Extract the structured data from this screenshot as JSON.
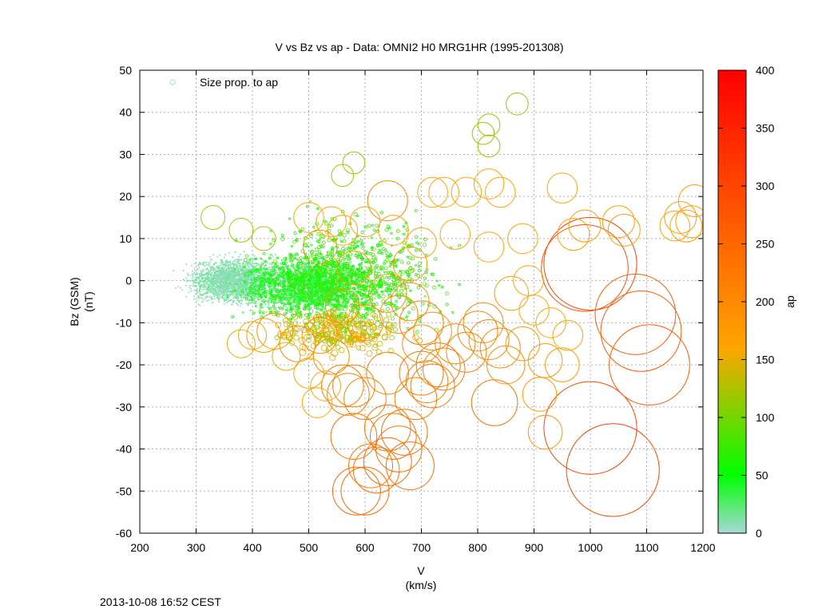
{
  "footer_timestamp": "2013-10-08 16:52 CEST",
  "colorbar_stops": [
    "#a8d8d8",
    "#00ff00",
    "#ffa500",
    "#ff0000"
  ],
  "chart_data": {
    "type": "scatter",
    "title": "V vs Bz vs ap  -  Data: OMNI2 H0 MRG1HR (1995-201308)",
    "xlabel": "V",
    "xunit": "(km/s)",
    "ylabel": "Bz (GSM)",
    "yunit": "(nT)",
    "xlim": [
      200,
      1200
    ],
    "ylim": [
      -60,
      50
    ],
    "xticks": [
      200,
      300,
      400,
      500,
      600,
      700,
      800,
      900,
      1000,
      1100,
      1200
    ],
    "yticks": [
      -60,
      -50,
      -40,
      -30,
      -20,
      -10,
      0,
      10,
      20,
      30,
      40,
      50
    ],
    "grid": true,
    "legend": {
      "label": "Size prop. to ap",
      "placement": "top-left"
    },
    "colorbar": {
      "label": "ap",
      "range": [
        0,
        400
      ],
      "ticks": [
        0,
        50,
        100,
        150,
        200,
        250,
        300,
        350,
        400
      ]
    },
    "series": [
      {
        "name": "Size prop. to ap",
        "points": [
          [
            1000,
            -35,
            300
          ],
          [
            1040,
            -45,
            300
          ],
          [
            1000,
            4,
            300
          ],
          [
            990,
            3,
            280
          ],
          [
            1080,
            -8,
            260
          ],
          [
            1090,
            -12,
            260
          ],
          [
            1105,
            -20,
            260
          ],
          [
            700,
            -10,
            220
          ],
          [
            640,
            19,
            200
          ],
          [
            585,
            -50,
            240
          ],
          [
            600,
            -50,
            240
          ],
          [
            640,
            -43,
            240
          ],
          [
            680,
            -44,
            240
          ],
          [
            660,
            -40,
            230
          ],
          [
            620,
            -45,
            230
          ],
          [
            580,
            -37,
            230
          ],
          [
            640,
            -35,
            230
          ],
          [
            670,
            -36,
            230
          ],
          [
            610,
            -44,
            220
          ],
          [
            650,
            -37,
            230
          ],
          [
            830,
            -29,
            230
          ],
          [
            560,
            -25,
            210
          ],
          [
            570,
            -27,
            210
          ],
          [
            580,
            -25,
            210
          ],
          [
            600,
            -28,
            210
          ],
          [
            640,
            -22,
            210
          ],
          [
            700,
            -22,
            220
          ],
          [
            720,
            -25,
            220
          ],
          [
            730,
            -20,
            220
          ],
          [
            710,
            -24,
            210
          ],
          [
            690,
            -28,
            210
          ],
          [
            740,
            -21,
            210
          ],
          [
            760,
            -15,
            200
          ],
          [
            780,
            -17,
            200
          ],
          [
            800,
            -12,
            200
          ],
          [
            820,
            -14,
            200
          ],
          [
            840,
            -16,
            200
          ],
          [
            810,
            -10,
            200
          ],
          [
            850,
            -20,
            190
          ],
          [
            700,
            -15,
            190
          ],
          [
            720,
            -12,
            190
          ],
          [
            680,
            -5,
            190
          ],
          [
            660,
            -8,
            190
          ],
          [
            640,
            -3,
            190
          ],
          [
            600,
            -10,
            180
          ],
          [
            540,
            -18,
            180
          ],
          [
            520,
            -13,
            180
          ],
          [
            480,
            -15,
            180
          ],
          [
            440,
            -12,
            180
          ],
          [
            420,
            -13,
            170
          ],
          [
            560,
            -6,
            170
          ],
          [
            580,
            3,
            170
          ],
          [
            520,
            8,
            170
          ],
          [
            680,
            4,
            170
          ],
          [
            860,
            -3,
            170
          ],
          [
            880,
            -15,
            170
          ],
          [
            910,
            -27,
            170
          ],
          [
            920,
            -36,
            170
          ],
          [
            920,
            -19,
            170
          ],
          [
            950,
            -20,
            170
          ],
          [
            970,
            11,
            160
          ],
          [
            990,
            13,
            160
          ],
          [
            1050,
            14,
            160
          ],
          [
            1060,
            12,
            160
          ],
          [
            1160,
            15,
            160
          ],
          [
            1180,
            14,
            160
          ],
          [
            1170,
            13,
            160
          ],
          [
            1185,
            19,
            160
          ],
          [
            1150,
            13,
            150
          ],
          [
            950,
            22,
            150
          ],
          [
            840,
            21,
            150
          ],
          [
            820,
            23,
            150
          ],
          [
            740,
            21,
            150
          ],
          [
            720,
            21,
            150
          ],
          [
            780,
            21,
            150
          ],
          [
            880,
            10,
            150
          ],
          [
            820,
            8,
            150
          ],
          [
            760,
            11,
            150
          ],
          [
            700,
            9,
            150
          ],
          [
            650,
            12,
            150
          ],
          [
            600,
            14,
            150
          ],
          [
            560,
            12,
            150
          ],
          [
            540,
            14,
            150
          ],
          [
            500,
            15,
            150
          ],
          [
            890,
            0,
            150
          ],
          [
            900,
            -7,
            150
          ],
          [
            930,
            -10,
            150
          ],
          [
            960,
            -13,
            150
          ],
          [
            500,
            -22,
            150
          ],
          [
            530,
            -25,
            150
          ],
          [
            515,
            -29,
            150
          ],
          [
            400,
            -13,
            140
          ],
          [
            380,
            -15,
            140
          ],
          [
            460,
            -18,
            140
          ],
          [
            330,
            15,
            120
          ],
          [
            380,
            12,
            120
          ],
          [
            420,
            10,
            120
          ],
          [
            560,
            25,
            110
          ],
          [
            580,
            28,
            110
          ],
          [
            870,
            42,
            110
          ],
          [
            820,
            37,
            110
          ],
          [
            820,
            32,
            110
          ],
          [
            810,
            35,
            110
          ]
        ],
        "dense_cloud": [
          {
            "v_range": [
              250,
              480
            ],
            "bz_range": [
              -8,
              8
            ],
            "ap_range": [
              0,
              20
            ],
            "count": 2400
          },
          {
            "v_range": [
              320,
              680
            ],
            "bz_range": [
              -12,
              10
            ],
            "ap_range": [
              10,
              60
            ],
            "count": 2200
          },
          {
            "v_range": [
              340,
              820
            ],
            "bz_range": [
              -20,
              22
            ],
            "ap_range": [
              40,
              90
            ],
            "count": 900
          },
          {
            "v_range": [
              380,
              720
            ],
            "bz_range": [
              -20,
              -4
            ],
            "ap_range": [
              100,
              160
            ],
            "count": 250
          }
        ]
      }
    ]
  }
}
